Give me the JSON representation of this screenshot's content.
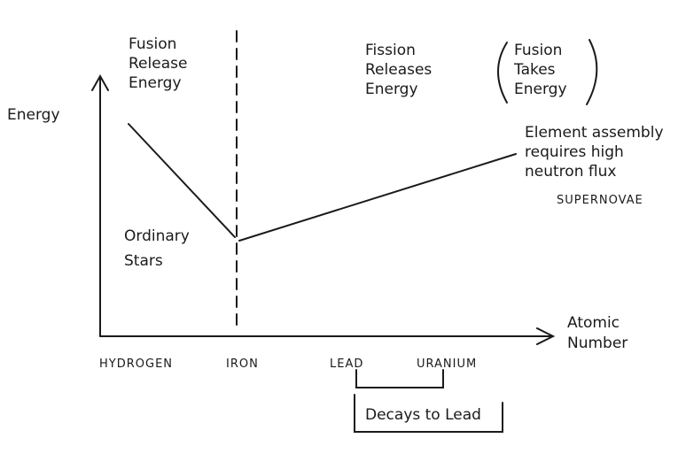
{
  "axes": {
    "y_label": "Energy",
    "x_label": [
      "Atomic",
      "Number"
    ]
  },
  "elements": [
    "HYDROGEN",
    "IRON",
    "LEAD",
    "URANIUM"
  ],
  "regions": {
    "fusion_release": [
      "Fusion",
      "Release",
      "Energy"
    ],
    "fission_release": [
      "Fission",
      "Releases",
      "Energy"
    ],
    "fusion_takes": [
      "Fusion",
      "Takes",
      "Energy"
    ]
  },
  "annotations": {
    "ordinary_stars": [
      "Ordinary",
      "Stars"
    ],
    "element_assembly": [
      "Element assembly",
      "requires high",
      "neutron flux"
    ],
    "supernovae": "SUPERNOVAE",
    "decays": "Decays to Lead"
  }
}
